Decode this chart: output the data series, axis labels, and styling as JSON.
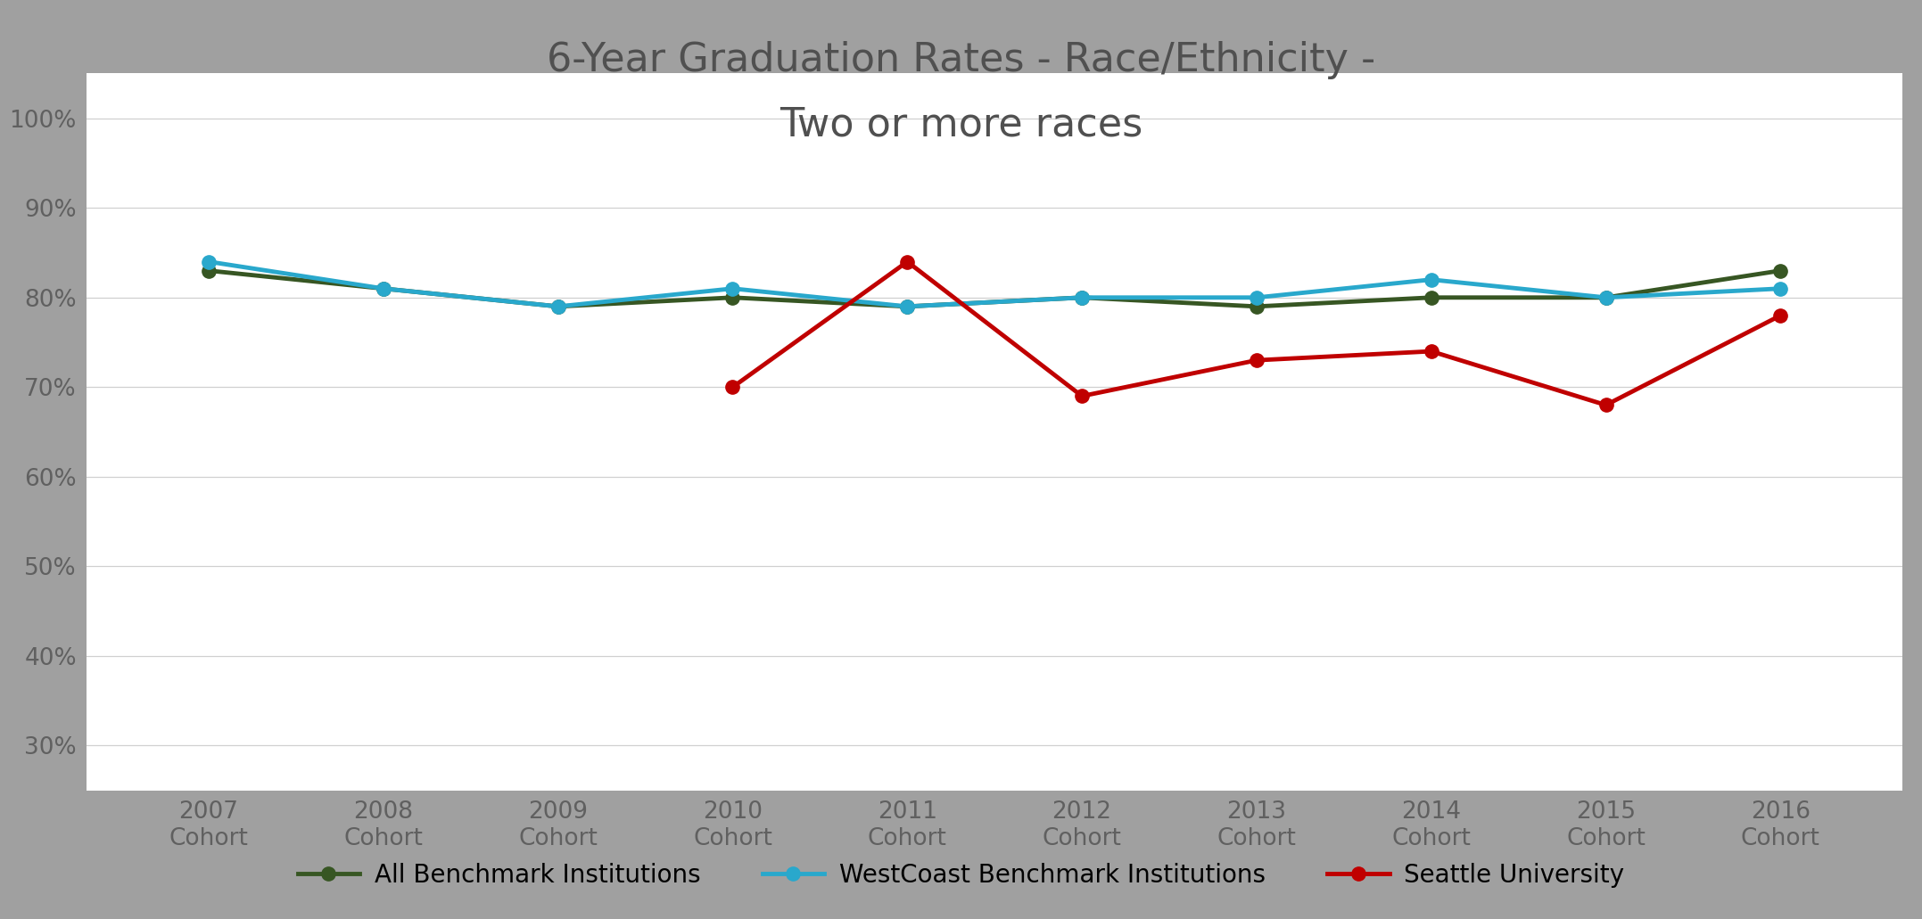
{
  "title_line1": "6-Year Graduation Rates - Race/Ethnicity -",
  "title_line2": "Two or more races",
  "x_values": [
    2007,
    2008,
    2009,
    2010,
    2011,
    2012,
    2013,
    2014,
    2015,
    2016
  ],
  "all_benchmark": [
    83,
    81,
    79,
    80,
    79,
    80,
    79,
    80,
    80,
    83
  ],
  "westcoast_benchmark": [
    84,
    81,
    79,
    81,
    79,
    80,
    80,
    82,
    80,
    81
  ],
  "seattle_university": [
    null,
    null,
    null,
    70,
    84,
    69,
    73,
    74,
    68,
    78
  ],
  "all_benchmark_color": "#375623",
  "westcoast_benchmark_color": "#29a8cc",
  "seattle_university_color": "#c00000",
  "ylim_min": 25,
  "ylim_max": 105,
  "yticks": [
    30,
    40,
    50,
    60,
    70,
    80,
    90,
    100
  ],
  "legend_labels": [
    "All Benchmark Institutions",
    "WestCoast Benchmark Institutions",
    "Seattle University"
  ],
  "background_color": "#ffffff",
  "border_color": "#a0a0a0",
  "grid_color": "#d0d0d0",
  "title_fontsize": 32,
  "tick_fontsize": 19,
  "legend_fontsize": 20,
  "line_width": 3.5,
  "marker_size": 11
}
